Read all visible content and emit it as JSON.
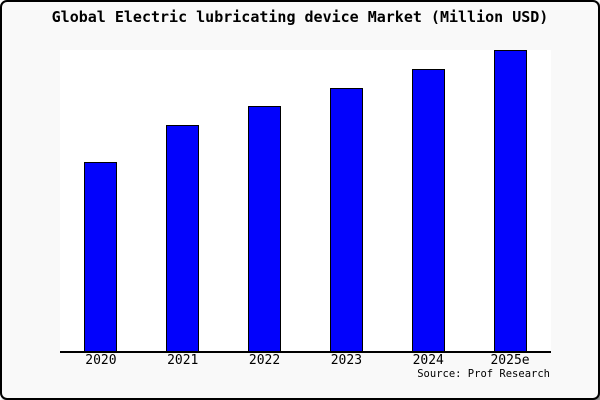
{
  "frame": {
    "background": "#f9f9f9",
    "border_color": "#000000"
  },
  "chart_data": {
    "type": "bar",
    "title": "Global Electric lubricating device Market (Million USD)",
    "categories": [
      "2020",
      "2021",
      "2022",
      "2023",
      "2024",
      "2025e"
    ],
    "values": [
      189,
      226,
      245,
      263,
      282,
      301
    ],
    "value_note": "y-axis is unlabeled; values are relative bar heights (pixels), 2025e = full plot height",
    "xlabel": "",
    "ylabel": "",
    "ylim": [
      0,
      301
    ],
    "grid": false,
    "legend": false,
    "bar_color": "#0202fc",
    "bar_border_color": "#000000",
    "plot_bg": "#ffffff",
    "axis_color": "#000000",
    "source": "Source: Prof Research"
  }
}
